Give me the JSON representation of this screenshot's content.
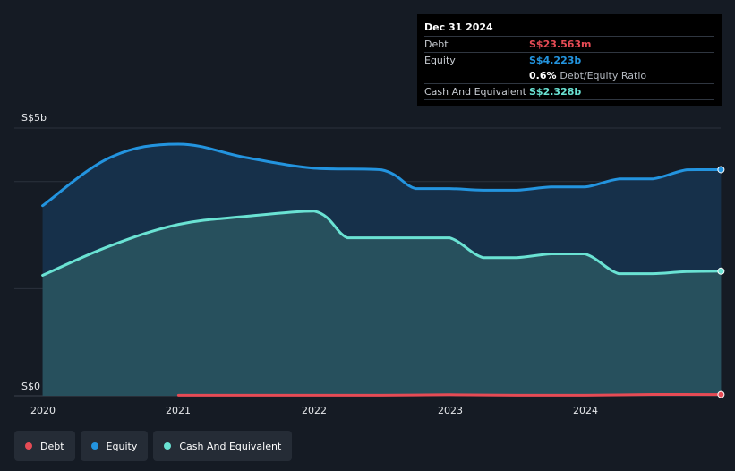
{
  "tooltip": {
    "date": "Dec 31 2024",
    "rows": [
      {
        "label": "Debt",
        "value": "S$23.563m",
        "color": "#e64b55"
      },
      {
        "label": "Equity",
        "value": "S$4.223b",
        "color": "#2394df"
      },
      {
        "value": "0.6%",
        "sub": "Debt/Equity Ratio",
        "color": "#ffffff"
      },
      {
        "label": "Cash And Equivalent",
        "value": "S$2.328b",
        "color": "#6ae2d3"
      }
    ]
  },
  "legend": [
    {
      "label": "Debt",
      "color": "#e64b55"
    },
    {
      "label": "Equity",
      "color": "#2394df"
    },
    {
      "label": "Cash And Equivalent",
      "color": "#6ae2d3"
    }
  ],
  "chart_data": {
    "type": "area",
    "y_tick_labels": [
      "S$5b",
      "S$0"
    ],
    "x_tick_labels": [
      "2020",
      "2021",
      "2022",
      "2023",
      "2024"
    ],
    "ylim": [
      0,
      5
    ],
    "y_unit": "S$ billions",
    "grid": true,
    "legend_placement": "bottom-left",
    "series": [
      {
        "name": "Equity",
        "color": "#2394df",
        "x": [
          "2019-12-31",
          "2020-06-30",
          "2020-12-31",
          "2021-06-30",
          "2021-12-31",
          "2022-06-30",
          "2022-09-30",
          "2022-12-31",
          "2023-03-31",
          "2023-06-30",
          "2023-09-30",
          "2023-12-31",
          "2024-03-31",
          "2024-06-30",
          "2024-09-30",
          "2024-12-31"
        ],
        "values": [
          3.55,
          4.45,
          4.7,
          4.45,
          4.25,
          4.22,
          3.87,
          3.87,
          3.84,
          3.84,
          3.9,
          3.9,
          4.05,
          4.05,
          4.22,
          4.223
        ]
      },
      {
        "name": "Cash And Equivalent",
        "color": "#6ae2d3",
        "x": [
          "2019-12-31",
          "2020-06-30",
          "2020-12-31",
          "2021-06-30",
          "2021-12-31",
          "2022-03-31",
          "2022-06-30",
          "2022-09-30",
          "2022-12-31",
          "2023-03-31",
          "2023-06-30",
          "2023-09-30",
          "2023-12-31",
          "2024-03-31",
          "2024-06-30",
          "2024-09-30",
          "2024-12-31"
        ],
        "values": [
          2.25,
          2.8,
          3.2,
          3.35,
          3.45,
          2.95,
          2.95,
          2.95,
          2.95,
          2.58,
          2.58,
          2.65,
          2.65,
          2.28,
          2.28,
          2.32,
          2.328
        ]
      },
      {
        "name": "Debt",
        "color": "#e64b55",
        "x": [
          "2020-12-31",
          "2021-06-30",
          "2021-12-31",
          "2022-06-30",
          "2022-12-31",
          "2023-06-30",
          "2023-12-31",
          "2024-06-30",
          "2024-12-31"
        ],
        "values": [
          0.01,
          0.01,
          0.01,
          0.01,
          0.02,
          0.01,
          0.01,
          0.025,
          0.024
        ]
      }
    ]
  }
}
